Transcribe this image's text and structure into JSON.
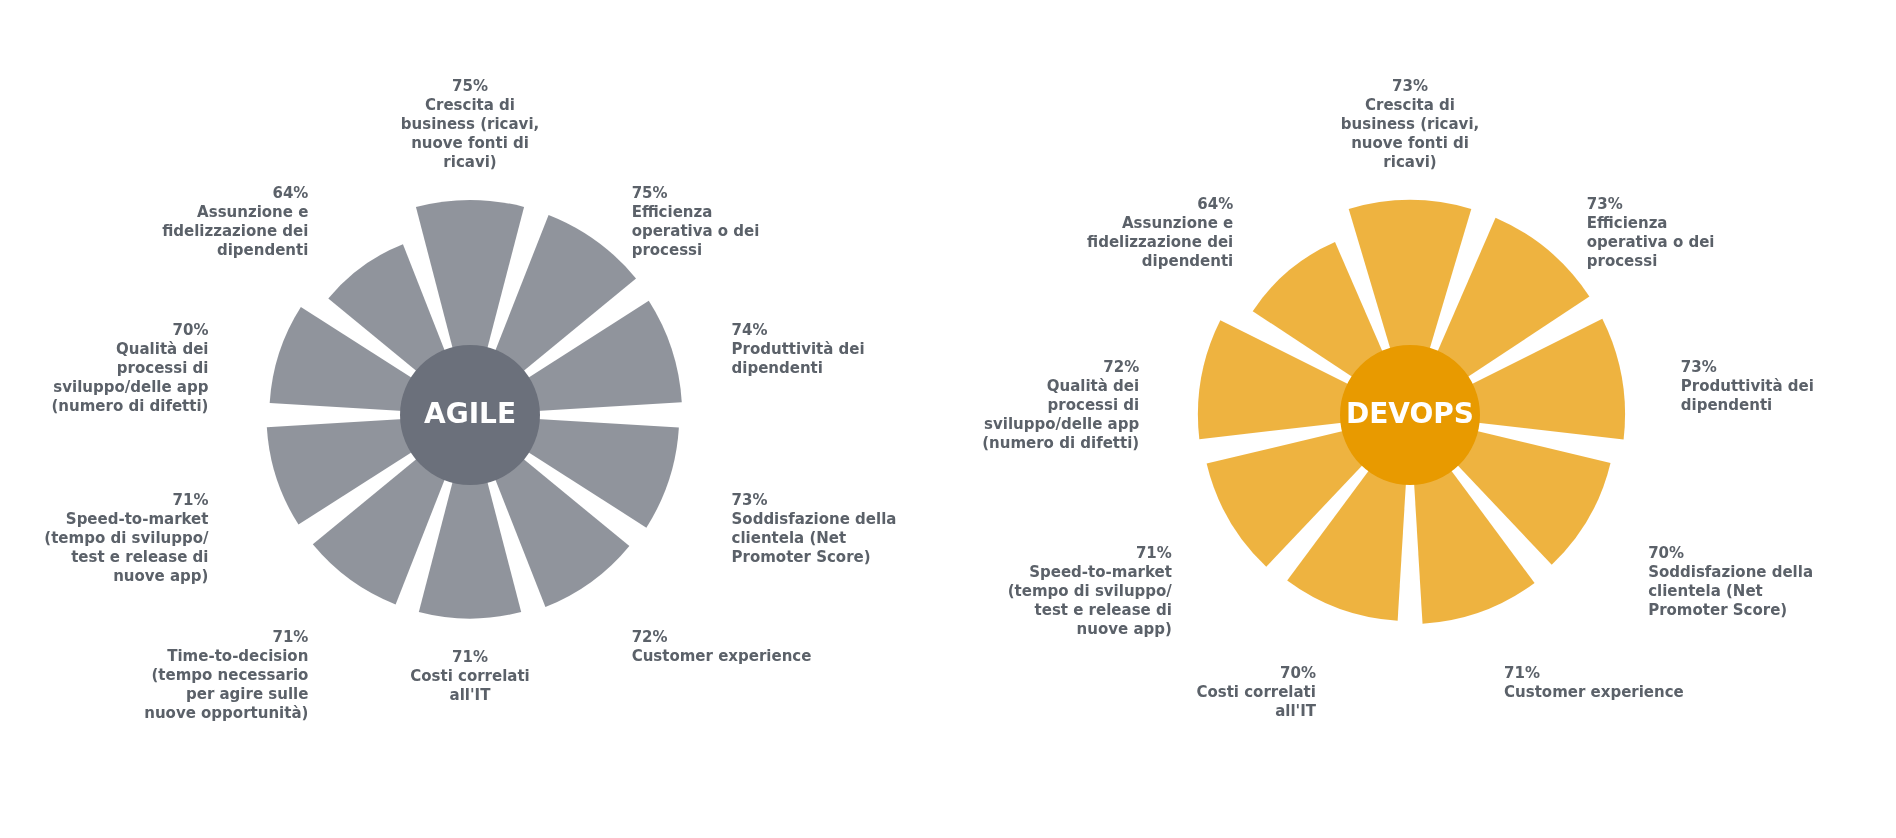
{
  "chart_data": [
    {
      "type": "other",
      "title": "AGILE",
      "color": "#6b707b",
      "categories": [
        "Crescita di business (ricavi, nuove fonti di ricavi)",
        "Efficienza operativa o dei processi",
        "Produttività dei dipendenti",
        "Soddisfazione della clientela (Net Promoter Score)",
        "Customer experience",
        "Costi correlati all'IT",
        "Time-to-decision (tempo necessario per agire sulle nuove opportunità)",
        "Speed-to-market (tempo di sviluppo/ test e release di nuove app)",
        "Qualità dei processi di sviluppo/delle app (numero di difetti)",
        "Assunzione e fidelizzazione dei dipendenti"
      ],
      "values": [
        75,
        75,
        74,
        73,
        72,
        71,
        71,
        71,
        70,
        64
      ],
      "value_labels": [
        "75%",
        "75%",
        "74%",
        "73%",
        "72%",
        "71%",
        "71%",
        "71%",
        "70%",
        "64%"
      ]
    },
    {
      "type": "other",
      "title": "DEVOPS",
      "color": "#e89a00",
      "categories": [
        "Crescita di business (ricavi, nuove fonti di ricavi)",
        "Efficienza operativa o dei processi",
        "Produttività dei dipendenti",
        "Soddisfazione della clientela (Net Promoter Score)",
        "Customer experience",
        "Costi correlati all'IT",
        "Speed-to-market (tempo di sviluppo/ test e release di nuove app)",
        "Qualità dei processi di sviluppo/delle app (numero di difetti)",
        "Assunzione e fidelizzazione dei dipendenti"
      ],
      "values": [
        73,
        73,
        73,
        70,
        71,
        70,
        71,
        72,
        64
      ],
      "value_labels": [
        "73%",
        "73%",
        "73%",
        "70%",
        "71%",
        "70%",
        "71%",
        "72%",
        "64%"
      ]
    }
  ]
}
